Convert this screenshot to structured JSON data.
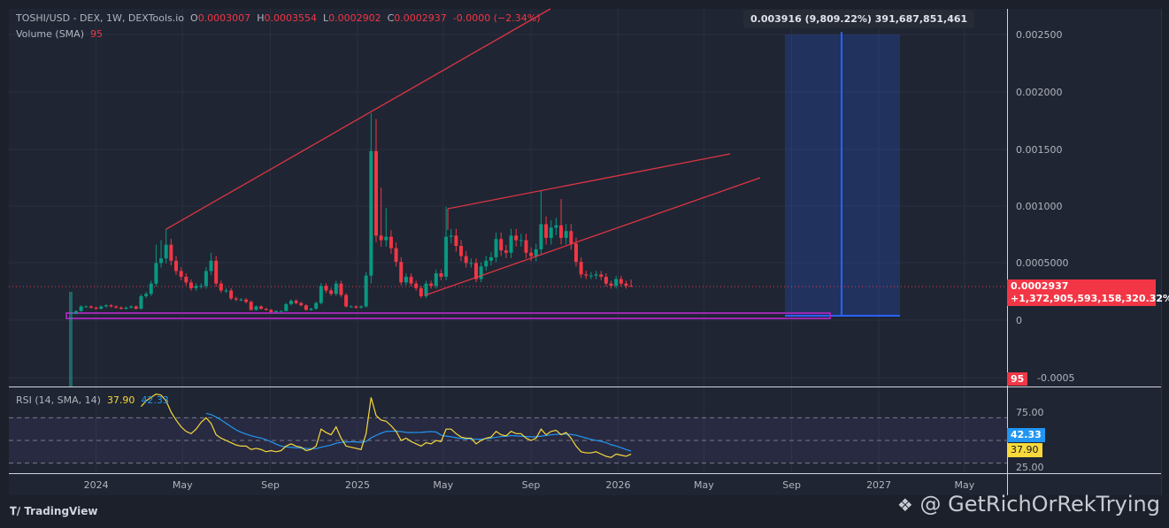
{
  "legend": {
    "symbol": "TOSHI/USD - DEX, 1W, DEXTools.io",
    "o_label": "O",
    "o": "0.0003007",
    "h_label": "H",
    "h": "0.0003554",
    "l_label": "L",
    "l": "0.0002902",
    "c_label": "C",
    "c": "0.0002937",
    "change": "-0.0000 (−2.34%)",
    "volume_label": "Volume (SMA)",
    "volume_value": "95"
  },
  "rsi_legend": {
    "label": "RSI (14, SMA, 14)",
    "rsi": "37.90",
    "sma": "42.33"
  },
  "tooltip": "0.003916 (9,809.22%) 391,687,851,461",
  "price_badge": {
    "price": "0.0002937",
    "change": "+1,372,905,593,158,320.32%"
  },
  "volume_badge": "95",
  "rsi_badges": {
    "sma": "42.33",
    "rsi": "37.90"
  },
  "y_axis": [
    "0.002500",
    "0.002000",
    "0.001500",
    "0.001000",
    "0.0005000",
    "0",
    "-0.0005"
  ],
  "rsi_axis": [
    "75.00",
    "25.00"
  ],
  "time_axis": [
    {
      "label": "2024",
      "date": "2024-01-01"
    },
    {
      "label": "May",
      "date": "2024-05-01"
    },
    {
      "label": "Sep",
      "date": "2024-09-01"
    },
    {
      "label": "2025",
      "date": "2025-01-01"
    },
    {
      "label": "May",
      "date": "2025-05-01"
    },
    {
      "label": "Sep",
      "date": "2025-09-01"
    },
    {
      "label": "2026",
      "date": "2026-01-01"
    },
    {
      "label": "May",
      "date": "2026-05-01"
    },
    {
      "label": "Sep",
      "date": "2026-09-01"
    },
    {
      "label": "2027",
      "date": "2027-01-01"
    },
    {
      "label": "May",
      "date": "2027-05-01"
    }
  ],
  "footer": {
    "brand": "TradingView",
    "watermark": "@ GetRichOrRekTrying"
  },
  "colors": {
    "up": "#089981",
    "down": "#f23645",
    "rsi": "#f7d93b",
    "rsi_sma": "#2196f3",
    "zone": "#9c27b0",
    "position": "#2962ff"
  },
  "chart_data": {
    "type": "candlestick",
    "interval": "1W",
    "first_week": "2023-12-04",
    "ylim": [
      -0.0005,
      0.0027
    ],
    "close": [
      8e-05,
      0.00012,
      0.00012,
      0.00011,
      0.0001,
      0.00012,
      0.00013,
      0.00012,
      0.00011,
      0.0001,
      0.00011,
      0.00012,
      0.0001,
      0.00021,
      0.00023,
      0.00032,
      0.0005,
      0.00054,
      0.00066,
      0.00052,
      0.00043,
      0.00038,
      0.00033,
      0.00028,
      0.0003,
      0.0003,
      0.00043,
      0.00052,
      0.00032,
      0.00026,
      0.00026,
      0.00019,
      0.00018,
      0.00018,
      0.00016,
      9e-05,
      0.00012,
      0.0001,
      9e-05,
      7e-05,
      8e-05,
      8e-05,
      0.00014,
      0.00017,
      0.00015,
      0.00013,
      9e-05,
      0.0001,
      0.00015,
      0.0003,
      0.00026,
      0.00023,
      0.00032,
      0.00022,
      0.00012,
      0.00012,
      0.00011,
      0.00012,
      0.00039,
      0.00148,
      0.00074,
      0.0007,
      0.00073,
      0.00063,
      0.00051,
      0.00033,
      0.00038,
      0.00032,
      0.00028,
      0.00021,
      0.00032,
      0.0003,
      0.00041,
      0.00038,
      0.00073,
      0.00074,
      0.00065,
      0.00056,
      0.0005,
      0.0005,
      0.00036,
      0.00047,
      0.00052,
      0.00055,
      0.00071,
      0.00061,
      0.00059,
      0.00074,
      0.0007,
      0.0007,
      0.00059,
      0.00056,
      0.00062,
      0.00084,
      0.00072,
      0.00081,
      0.00083,
      0.00072,
      0.00078,
      0.00067,
      0.00051,
      0.0004,
      0.00039,
      0.00039,
      0.0004,
      0.00038,
      0.00032,
      0.0003,
      0.00036,
      0.00032,
      0.0003007,
      0.0002937
    ],
    "high_overrides": {
      "16": 0.00066,
      "17": 0.0007,
      "18": 0.0008,
      "27": 0.00059,
      "59": 0.00181,
      "60": 0.00176,
      "61": 0.00116,
      "62": 0.00098,
      "74": 0.00099,
      "93": 0.00113,
      "97": 0.00106,
      "111": 0.0003554
    },
    "low_overrides": {
      "59": 0.00032,
      "111": 0.0002902
    },
    "last_price": 0.0002937,
    "rsi": [
      null,
      null,
      null,
      null,
      null,
      null,
      null,
      null,
      null,
      null,
      null,
      null,
      null,
      80,
      85,
      88,
      91,
      90,
      85,
      75,
      68,
      62,
      58,
      56,
      60,
      66,
      70,
      65,
      55,
      52,
      50,
      48,
      46,
      45,
      45,
      42,
      43,
      42,
      40,
      41,
      40,
      41,
      45,
      47,
      45,
      44,
      41,
      42,
      45,
      60,
      57,
      55,
      62,
      52,
      45,
      44,
      43,
      42,
      56,
      88,
      72,
      68,
      67,
      63,
      58,
      50,
      52,
      49,
      47,
      45,
      48,
      47,
      50,
      49,
      60,
      60,
      56,
      53,
      52,
      52,
      47,
      50,
      52,
      53,
      58,
      55,
      54,
      58,
      56,
      56,
      52,
      50,
      52,
      60,
      55,
      58,
      59,
      55,
      57,
      52,
      45,
      40,
      39,
      39,
      40,
      38,
      36,
      35,
      38,
      37,
      36,
      37.9
    ],
    "rsi_bands": [
      30,
      50,
      70
    ]
  }
}
